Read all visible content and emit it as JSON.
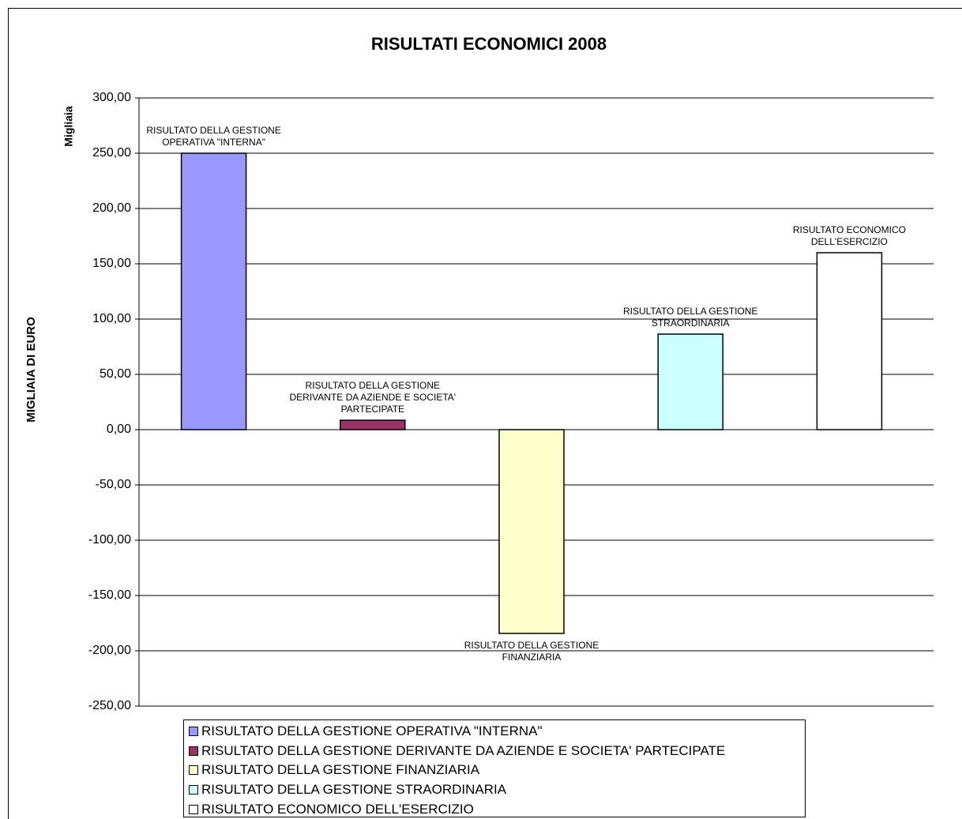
{
  "chart_data": {
    "type": "bar",
    "title": "RISULTATI ECONOMICI 2008",
    "y_label": "MIGLIAIA DI EURO",
    "display_unit": "Migliaia",
    "series": [
      {
        "name": "RISULTATO DELLA GESTIONE OPERATIVA \"INTERNA\"",
        "color": "#9999ff",
        "values": [
          250
        ]
      },
      {
        "name": "RISULTATO DELLA GESTIONE DERIVANTE DA AZIENDE E SOCIETA' PARTECIPATE",
        "color": "#993366",
        "values": [
          8.5
        ]
      },
      {
        "name": "RISULTATO DELLA GESTIONE FINANZIARIA",
        "color": "#ffffcc",
        "values": [
          -184.3
        ]
      },
      {
        "name": "RISULTATO DELLA GESTIONE STRAORDINARIA",
        "color": "#ccffff",
        "values": [
          86.4
        ]
      },
      {
        "name": "RISULTATO ECONOMICO DELL'ESERCIZIO",
        "color": "#ffffff",
        "values": [
          160
        ]
      }
    ],
    "ylim": [
      -250,
      300
    ],
    "yticks": [
      {
        "value": -250,
        "label": "-250,00"
      },
      {
        "value": -200,
        "label": "-200,00"
      },
      {
        "value": -150,
        "label": "-150,00"
      },
      {
        "value": -100,
        "label": "-100,00"
      },
      {
        "value": -50,
        "label": "-50,00"
      },
      {
        "value": 0,
        "label": "0,00"
      },
      {
        "value": 50,
        "label": "50,00"
      },
      {
        "value": 100,
        "label": "100,00"
      },
      {
        "value": 150,
        "label": "150,00"
      },
      {
        "value": 200,
        "label": "200,00"
      },
      {
        "value": 250,
        "label": "250,00"
      },
      {
        "value": 300,
        "label": "300,00"
      }
    ],
    "grid": true,
    "legend": "bottom"
  }
}
